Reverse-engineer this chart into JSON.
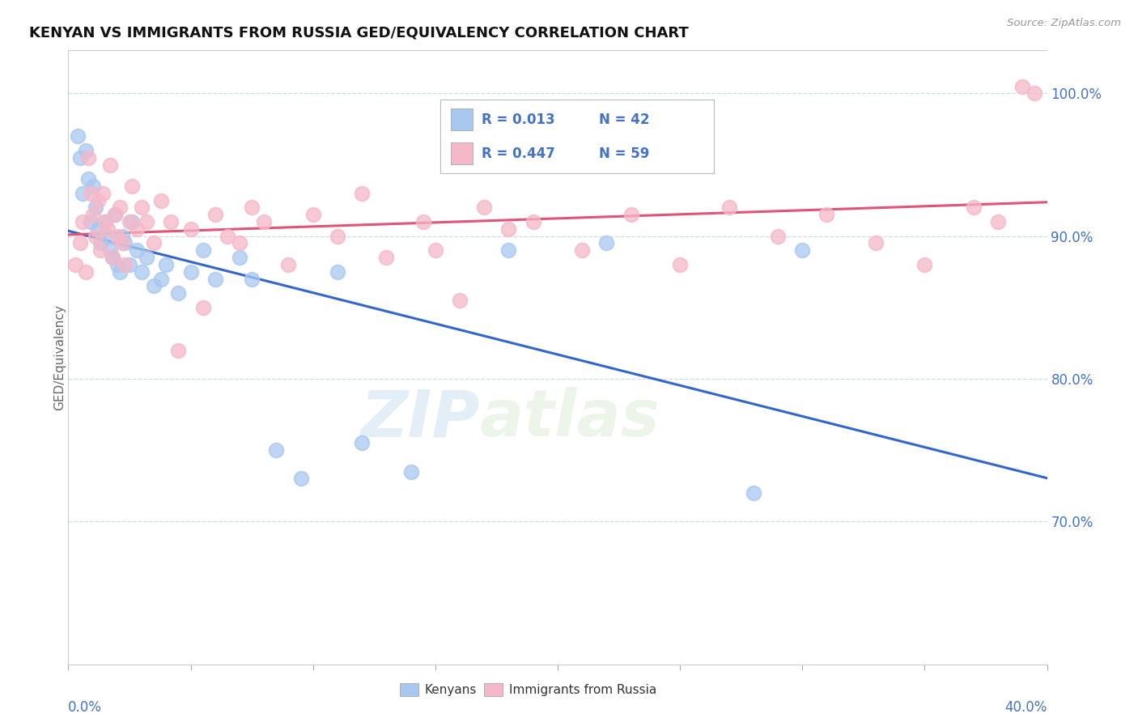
{
  "title": "KENYAN VS IMMIGRANTS FROM RUSSIA GED/EQUIVALENCY CORRELATION CHART",
  "source": "Source: ZipAtlas.com",
  "ylabel": "GED/Equivalency",
  "legend_kenyans": "Kenyans",
  "legend_russia": "Immigrants from Russia",
  "r_kenyans": 0.013,
  "n_kenyans": 42,
  "r_russia": 0.447,
  "n_russia": 59,
  "kenyan_color": "#a8c8f0",
  "russia_color": "#f5b8c8",
  "kenyan_line_color": "#3366cc",
  "russia_line_color": "#e05577",
  "xmin": 0.0,
  "xmax": 40.0,
  "ymin": 60.0,
  "ymax": 103.0,
  "yticks": [
    70.0,
    80.0,
    90.0,
    100.0
  ],
  "watermark_zip": "ZIP",
  "watermark_atlas": "atlas",
  "background_color": "#ffffff",
  "grid_color": "#c8d8e8",
  "kenyans_x": [
    0.4,
    0.5,
    0.6,
    0.7,
    0.8,
    0.9,
    1.0,
    1.1,
    1.2,
    1.3,
    1.5,
    1.6,
    1.7,
    1.8,
    1.9,
    2.0,
    2.1,
    2.2,
    2.3,
    2.5,
    2.6,
    2.8,
    3.0,
    3.2,
    3.5,
    3.8,
    4.0,
    4.5,
    5.0,
    5.5,
    6.0,
    7.0,
    7.5,
    8.5,
    9.5,
    11.0,
    12.0,
    14.0,
    18.0,
    22.0,
    28.0,
    30.0
  ],
  "kenyans_y": [
    97.0,
    95.5,
    93.0,
    96.0,
    94.0,
    91.0,
    93.5,
    92.0,
    90.5,
    89.5,
    91.0,
    90.0,
    89.0,
    88.5,
    91.5,
    88.0,
    87.5,
    90.0,
    89.5,
    88.0,
    91.0,
    89.0,
    87.5,
    88.5,
    86.5,
    87.0,
    88.0,
    86.0,
    87.5,
    89.0,
    87.0,
    88.5,
    87.0,
    75.0,
    73.0,
    87.5,
    75.5,
    73.5,
    89.0,
    89.5,
    72.0,
    89.0
  ],
  "russia_x": [
    0.3,
    0.5,
    0.6,
    0.7,
    0.8,
    0.9,
    1.0,
    1.1,
    1.2,
    1.3,
    1.4,
    1.5,
    1.6,
    1.7,
    1.8,
    1.9,
    2.0,
    2.1,
    2.2,
    2.3,
    2.5,
    2.6,
    2.8,
    3.0,
    3.2,
    3.5,
    3.8,
    4.2,
    4.5,
    5.0,
    5.5,
    6.0,
    6.5,
    7.0,
    7.5,
    8.0,
    9.0,
    10.0,
    11.0,
    12.0,
    13.0,
    14.5,
    15.0,
    16.0,
    17.0,
    18.0,
    19.0,
    21.0,
    23.0,
    25.0,
    27.0,
    29.0,
    31.0,
    33.0,
    35.0,
    37.0,
    38.0,
    39.0,
    39.5
  ],
  "russia_y": [
    88.0,
    89.5,
    91.0,
    87.5,
    95.5,
    93.0,
    91.5,
    90.0,
    92.5,
    89.0,
    93.0,
    91.0,
    90.5,
    95.0,
    88.5,
    91.5,
    90.0,
    92.0,
    89.5,
    88.0,
    91.0,
    93.5,
    90.5,
    92.0,
    91.0,
    89.5,
    92.5,
    91.0,
    82.0,
    90.5,
    85.0,
    91.5,
    90.0,
    89.5,
    92.0,
    91.0,
    88.0,
    91.5,
    90.0,
    93.0,
    88.5,
    91.0,
    89.0,
    85.5,
    92.0,
    90.5,
    91.0,
    89.0,
    91.5,
    88.0,
    92.0,
    90.0,
    91.5,
    89.5,
    88.0,
    92.0,
    91.0,
    100.5,
    100.0
  ]
}
